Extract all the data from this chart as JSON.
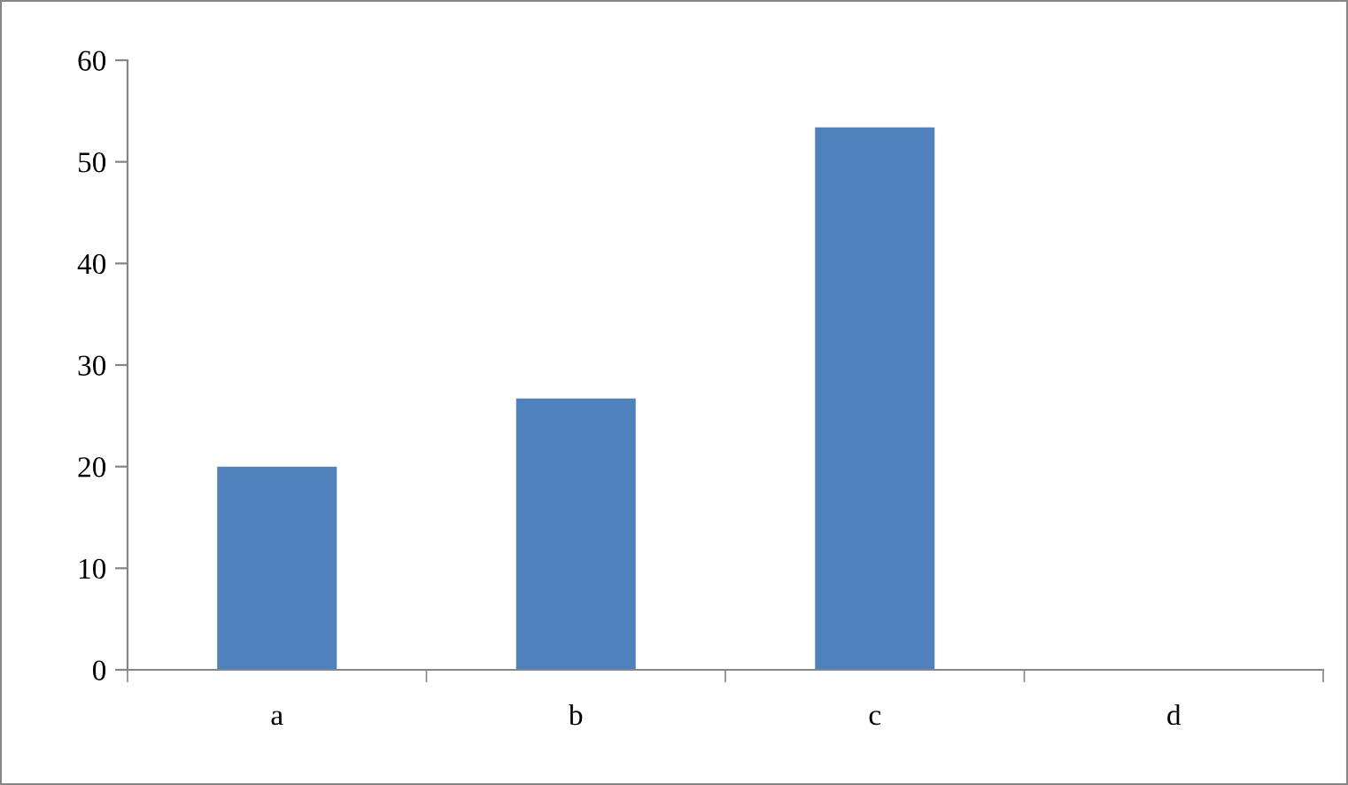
{
  "chart_data": {
    "type": "bar",
    "categories": [
      "a",
      "b",
      "c",
      "d"
    ],
    "values": [
      20,
      26.7,
      53.4,
      0
    ],
    "color": "#4f81bd",
    "ylim": [
      0,
      60
    ],
    "yticks": [
      0,
      10,
      20,
      30,
      40,
      50,
      60
    ],
    "grid": false,
    "legend": false
  }
}
